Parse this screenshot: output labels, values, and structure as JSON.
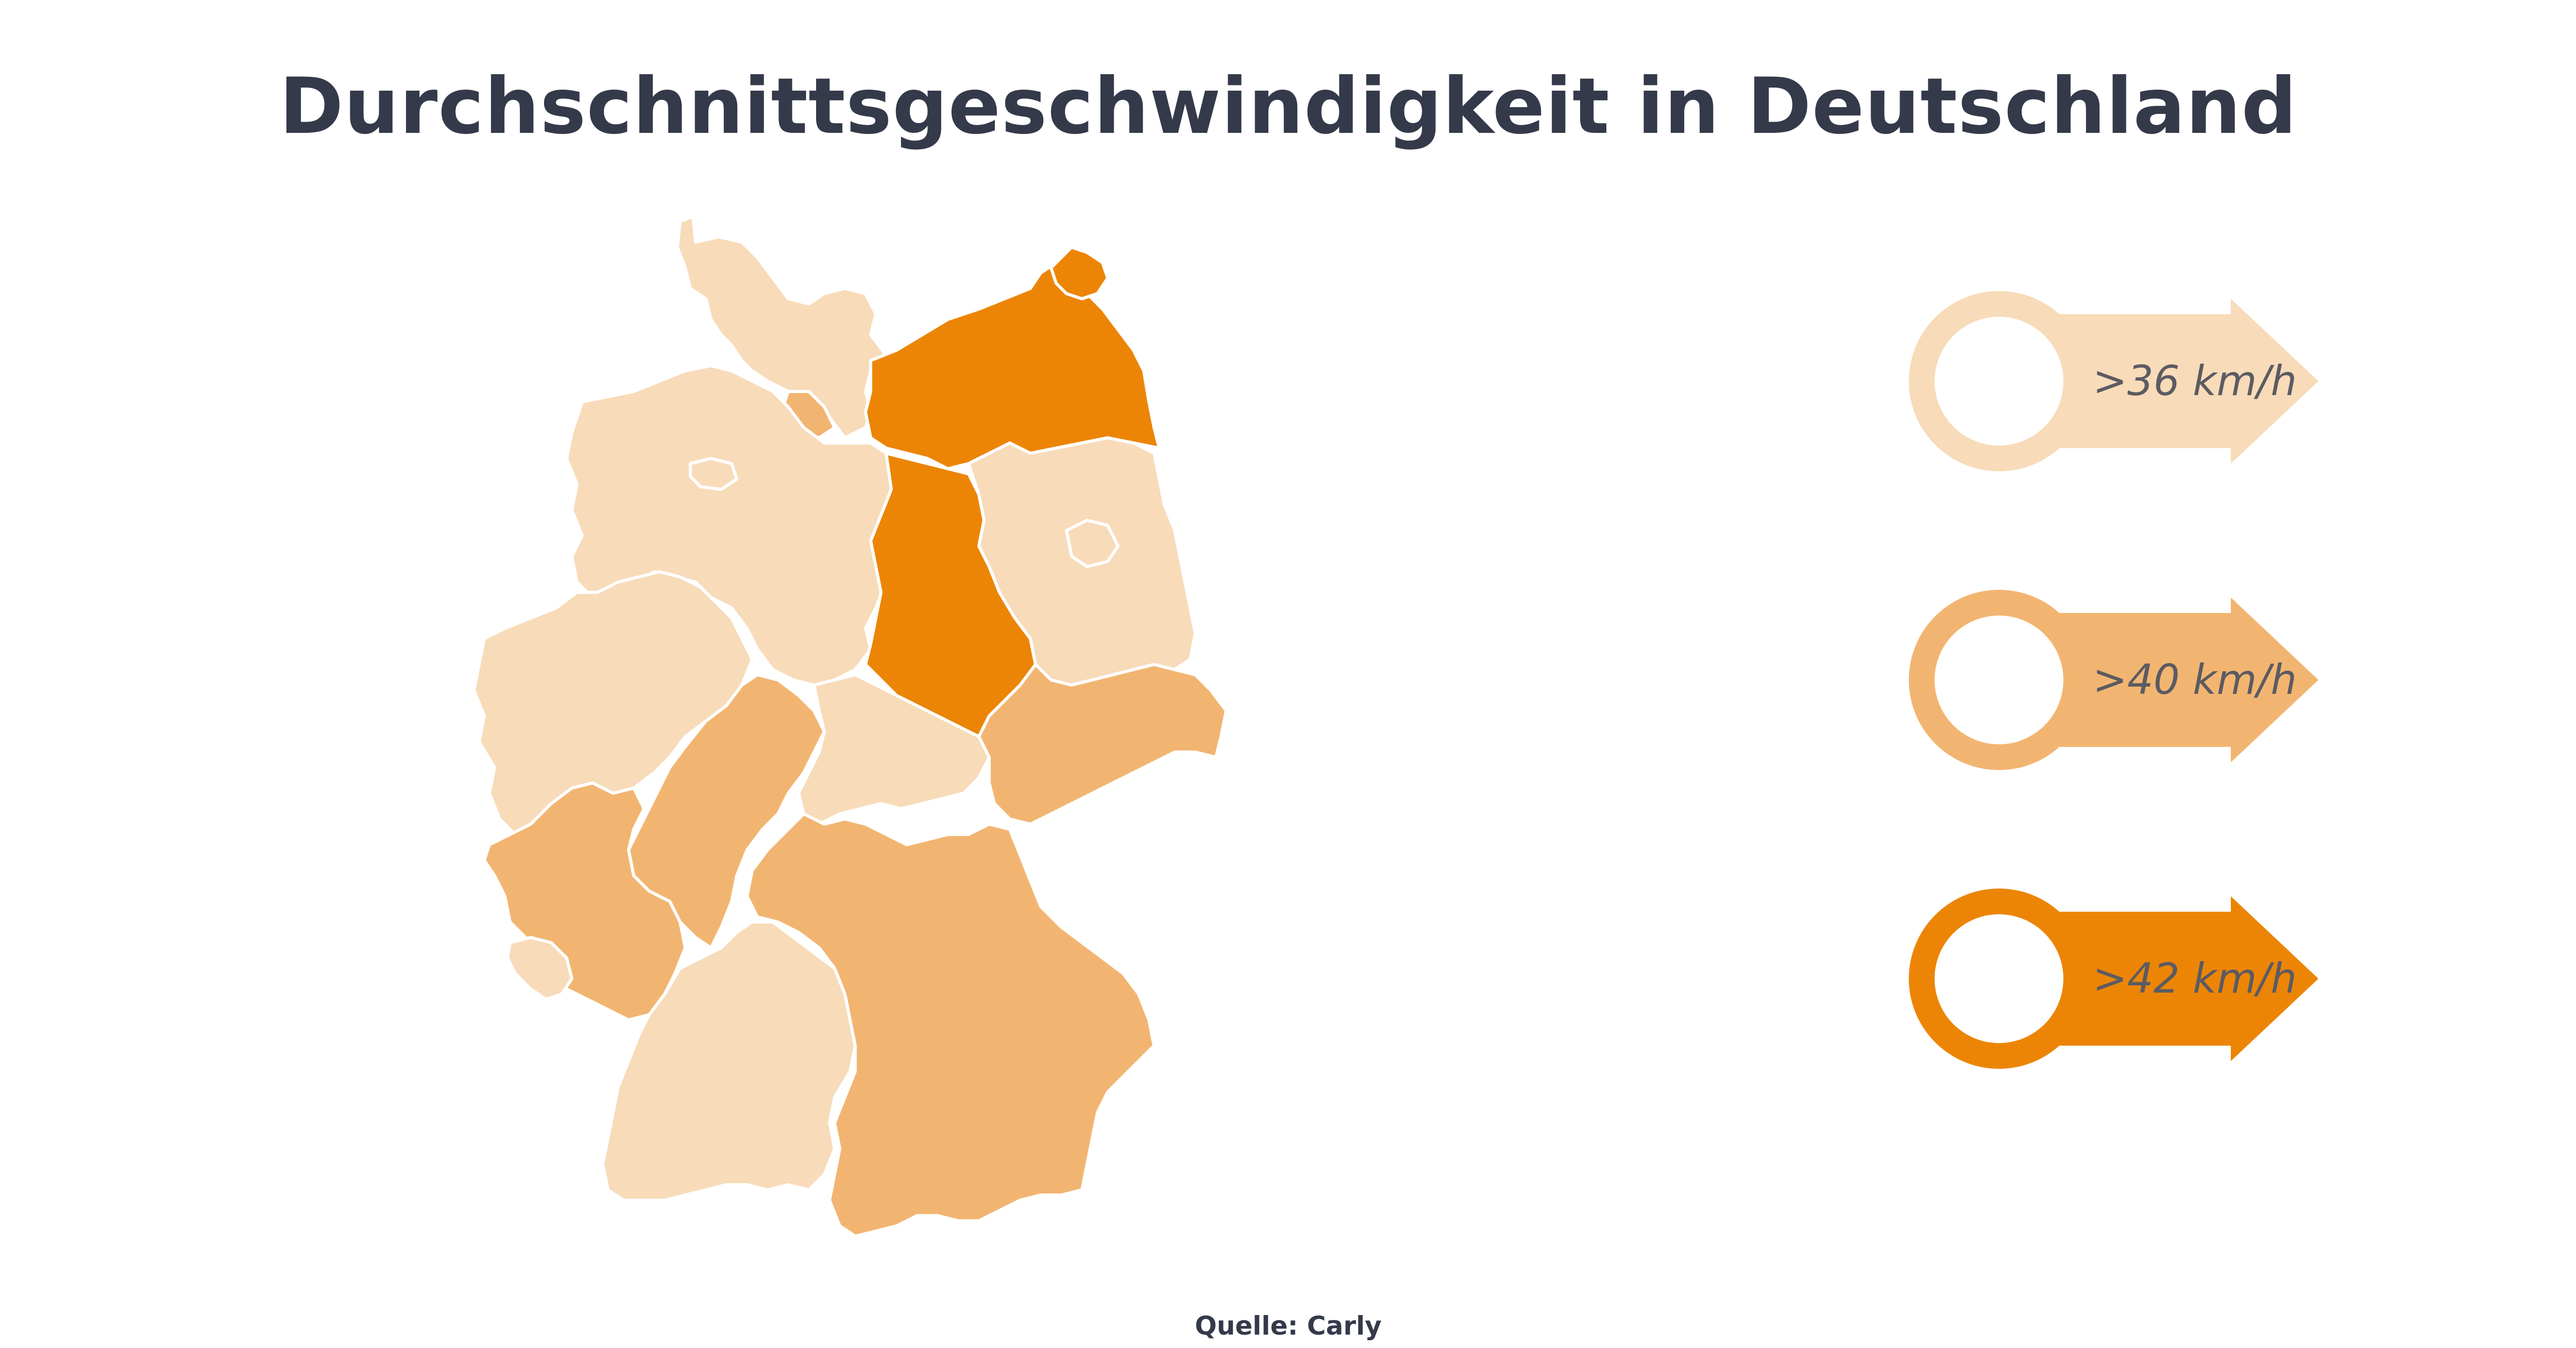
{
  "title": "Durchschnittsgeschwindigkeit in Deutschland",
  "source": "Quelle: Carly",
  "colors": {
    "light": "#f8dbb9",
    "medium": "#f2b571",
    "dark": "#ec8506",
    "border": "#ffffff",
    "title": "#343a4a",
    "legend_text": "#5b5b62"
  },
  "legend": [
    {
      "label": ">36 km/h",
      "color": "#f8dbb9"
    },
    {
      "label": ">40 km/h",
      "color": "#f2b571"
    },
    {
      "label": ">42 km/h",
      "color": "#ec8506"
    }
  ]
}
